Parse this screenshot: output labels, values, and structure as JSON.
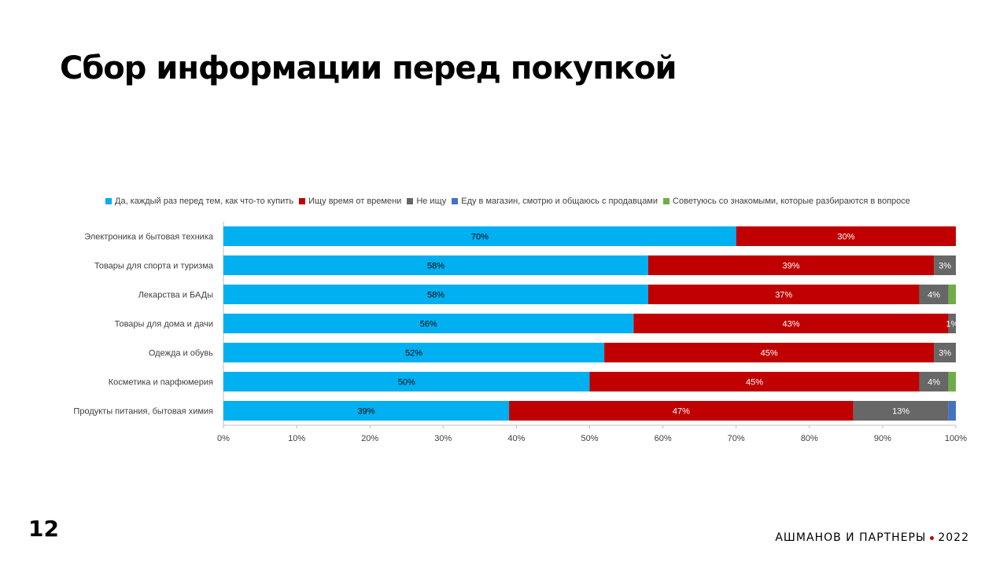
{
  "page": {
    "title": "Сбор информации перед покупкой",
    "page_number": "12",
    "brand_name": "АШМАНОВ И ПАРТНЕРЫ",
    "brand_year": "2022"
  },
  "chart_data": {
    "type": "bar",
    "orientation": "horizontal",
    "stacked": true,
    "title": "",
    "xlabel": "",
    "ylabel": "",
    "xlim": [
      0,
      100
    ],
    "x_ticks": [
      "0%",
      "10%",
      "20%",
      "30%",
      "40%",
      "50%",
      "60%",
      "70%",
      "80%",
      "90%",
      "100%"
    ],
    "legend_position": "top",
    "categories": [
      "Электроника и бытовая техника",
      "Товары для спорта и туризма",
      "Лекарства и БАДы",
      "Товары для дома и дачи",
      "Одежда и обувь",
      "Косметика и парфюмерия",
      "Продукты питания, бытовая химия"
    ],
    "series": [
      {
        "name": "Да, каждый раз перед тем, как что-то купить",
        "color": "#00b0f0",
        "label_color": "#000000",
        "values": [
          70,
          58,
          58,
          56,
          52,
          50,
          39
        ],
        "labels": [
          "70%",
          "58%",
          "58%",
          "56%",
          "52%",
          "50%",
          "39%"
        ]
      },
      {
        "name": "Ищу время от времени",
        "color": "#c00000",
        "label_color": "#ffffff",
        "values": [
          30,
          39,
          37,
          43,
          45,
          45,
          47
        ],
        "labels": [
          "30%",
          "39%",
          "37%",
          "43%",
          "45%",
          "45%",
          "47%"
        ]
      },
      {
        "name": "Не ищу",
        "color": "#676767",
        "label_color": "#ffffff",
        "values": [
          0,
          3,
          4,
          1,
          3,
          4,
          13
        ],
        "labels": [
          "",
          "3%",
          "4%",
          "1%",
          "3%",
          "4%",
          "13%"
        ]
      },
      {
        "name": "Еду в магазин, смотрю и общаюсь с продавцами",
        "color": "#4472c4",
        "label_color": "#ffffff",
        "values": [
          0,
          0,
          0,
          0,
          0,
          0,
          1
        ],
        "labels": [
          "",
          "",
          "",
          "",
          "",
          "",
          ""
        ]
      },
      {
        "name": "Советуюсь со знакомыми, которые разбираются в вопросе",
        "color": "#70ad47",
        "label_color": "#ffffff",
        "values": [
          0,
          0,
          1,
          0,
          0,
          1,
          0
        ],
        "labels": [
          "",
          "",
          "",
          "",
          "",
          "",
          ""
        ]
      }
    ]
  }
}
